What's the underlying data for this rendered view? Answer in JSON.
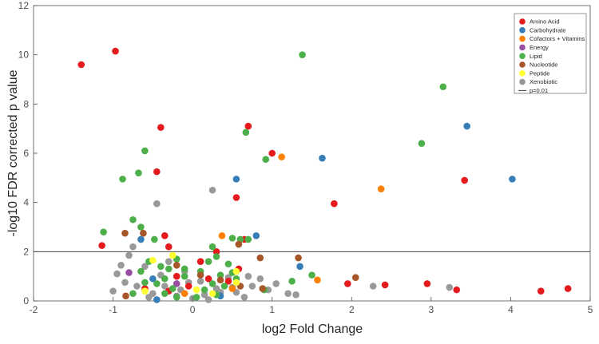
{
  "chart_data": {
    "type": "scatter",
    "xlabel": "log2 Fold Change",
    "ylabel": "-log10 FDR corrected p value",
    "xlim": [
      -2,
      5
    ],
    "ylim": [
      0,
      12
    ],
    "xticks": [
      "-2",
      "-1",
      "0",
      "1",
      "2",
      "3",
      "4",
      "5"
    ],
    "yticks": [
      "0",
      "2",
      "4",
      "6",
      "8",
      "10",
      "12"
    ],
    "grid": false,
    "legend_position": "top-right",
    "threshold": {
      "label": "p=0.01",
      "y": 2,
      "color": "#404040"
    },
    "series": [
      {
        "name": "Amino Acid",
        "color": "#e41a1c",
        "points": [
          [
            -1.4,
            9.6
          ],
          [
            -0.97,
            10.15
          ],
          [
            -0.4,
            7.05
          ],
          [
            0.7,
            7.1
          ],
          [
            -0.45,
            5.25
          ],
          [
            0.55,
            4.2
          ],
          [
            1.0,
            6.0
          ],
          [
            1.78,
            3.95
          ],
          [
            3.42,
            4.9
          ],
          [
            2.95,
            0.7
          ],
          [
            -1.14,
            2.25
          ],
          [
            -0.35,
            2.65
          ],
          [
            -0.3,
            2.2
          ],
          [
            0.65,
            2.5
          ],
          [
            0.3,
            2.0
          ],
          [
            0.1,
            1.6
          ],
          [
            -0.2,
            1.0
          ],
          [
            0.58,
            1.3
          ],
          [
            -0.6,
            0.5
          ],
          [
            -0.3,
            0.4
          ],
          [
            0.45,
            0.8
          ],
          [
            1.95,
            0.7
          ],
          [
            2.42,
            0.65
          ],
          [
            3.32,
            0.45
          ],
          [
            4.38,
            0.4
          ],
          [
            4.72,
            0.5
          ],
          [
            0.2,
            0.9
          ],
          [
            -0.05,
            0.6
          ]
        ]
      },
      {
        "name": "Carbohydrate",
        "color": "#377eb8",
        "points": [
          [
            0.55,
            4.95
          ],
          [
            1.63,
            5.8
          ],
          [
            3.45,
            7.1
          ],
          [
            4.02,
            4.95
          ],
          [
            0.8,
            2.65
          ],
          [
            -0.65,
            2.5
          ],
          [
            1.35,
            1.4
          ],
          [
            -0.5,
            0.9
          ],
          [
            -0.45,
            0.05
          ],
          [
            0.35,
            0.2
          ]
        ]
      },
      {
        "name": "Cofactors + Vitamins",
        "color": "#ff7f00",
        "points": [
          [
            1.12,
            5.85
          ],
          [
            2.37,
            4.55
          ],
          [
            0.37,
            2.65
          ],
          [
            1.57,
            0.85
          ],
          [
            -0.1,
            0.3
          ],
          [
            0.5,
            0.5
          ]
        ]
      },
      {
        "name": "Energy",
        "color": "#984ea3",
        "points": [
          [
            -0.8,
            1.15
          ],
          [
            -0.2,
            0.7
          ]
        ]
      },
      {
        "name": "Lipid",
        "color": "#4daf4a",
        "points": [
          [
            1.38,
            10.0
          ],
          [
            3.15,
            8.7
          ],
          [
            2.88,
            6.4
          ],
          [
            -0.6,
            6.1
          ],
          [
            0.67,
            6.85
          ],
          [
            0.92,
            5.75
          ],
          [
            -0.88,
            4.95
          ],
          [
            -0.68,
            5.2
          ],
          [
            -0.75,
            3.3
          ],
          [
            -1.12,
            2.8
          ],
          [
            -0.65,
            3.0
          ],
          [
            -0.48,
            2.5
          ],
          [
            0.5,
            2.55
          ],
          [
            0.6,
            2.5
          ],
          [
            0.7,
            2.5
          ],
          [
            0.25,
            2.2
          ],
          [
            0.3,
            1.8
          ],
          [
            -0.2,
            1.7
          ],
          [
            -0.55,
            1.6
          ],
          [
            -0.4,
            1.4
          ],
          [
            0.45,
            1.5
          ],
          [
            0.2,
            1.6
          ],
          [
            -0.3,
            1.3
          ],
          [
            0.1,
            1.2
          ],
          [
            -0.1,
            1.0
          ],
          [
            0.35,
            1.05
          ],
          [
            0.55,
            0.9
          ],
          [
            -0.6,
            0.75
          ],
          [
            -0.75,
            0.3
          ],
          [
            -0.35,
            0.3
          ],
          [
            0.3,
            0.25
          ],
          [
            1.5,
            1.05
          ],
          [
            1.25,
            0.8
          ],
          [
            0.9,
            0.45
          ],
          [
            -0.2,
            0.15
          ],
          [
            0.05,
            0.15
          ],
          [
            -0.45,
            0.7
          ],
          [
            -0.25,
            0.5
          ],
          [
            0.15,
            0.45
          ],
          [
            0.4,
            0.6
          ],
          [
            -0.65,
            1.2
          ],
          [
            -0.1,
            1.3
          ],
          [
            0.5,
            1.15
          ],
          [
            -0.35,
            0.9
          ],
          [
            0.25,
            0.7
          ]
        ]
      },
      {
        "name": "Nucleotide",
        "color": "#a65628",
        "points": [
          [
            -0.85,
            2.75
          ],
          [
            -0.62,
            2.75
          ],
          [
            0.58,
            2.3
          ],
          [
            0.85,
            1.75
          ],
          [
            1.33,
            1.75
          ],
          [
            -0.84,
            0.2
          ],
          [
            0.88,
            0.5
          ],
          [
            2.05,
            0.95
          ],
          [
            -0.2,
            1.45
          ],
          [
            0.1,
            1.05
          ],
          [
            0.35,
            0.85
          ],
          [
            0.6,
            0.6
          ]
        ]
      },
      {
        "name": "Peptide",
        "color": "#ffff33",
        "points": [
          [
            -0.25,
            1.85
          ],
          [
            -0.5,
            1.65
          ],
          [
            0.55,
            1.2
          ],
          [
            0.05,
            0.45
          ],
          [
            -0.6,
            0.4
          ],
          [
            0.55,
            0.75
          ],
          [
            0.25,
            0.3
          ]
        ]
      },
      {
        "name": "Xenobiotic",
        "color": "#999999",
        "points": [
          [
            -0.45,
            3.95
          ],
          [
            0.25,
            4.5
          ],
          [
            -0.75,
            2.2
          ],
          [
            -0.8,
            1.85
          ],
          [
            -0.9,
            1.45
          ],
          [
            -0.95,
            1.1
          ],
          [
            -1.0,
            0.4
          ],
          [
            -0.85,
            0.75
          ],
          [
            -0.6,
            1.4
          ],
          [
            -0.3,
            1.6
          ],
          [
            -0.1,
            1.2
          ],
          [
            0.1,
            0.8
          ],
          [
            0.3,
            0.5
          ],
          [
            0.55,
            0.35
          ],
          [
            0.75,
            0.6
          ],
          [
            0.95,
            0.45
          ],
          [
            1.05,
            0.7
          ],
          [
            1.2,
            0.3
          ],
          [
            1.3,
            0.25
          ],
          [
            2.27,
            0.6
          ],
          [
            3.23,
            0.55
          ],
          [
            -0.5,
            0.3
          ],
          [
            -0.2,
            0.2
          ],
          [
            0.0,
            0.1
          ],
          [
            0.2,
            0.05
          ],
          [
            -0.35,
            0.6
          ],
          [
            0.45,
            0.95
          ],
          [
            0.85,
            0.9
          ],
          [
            -0.7,
            0.6
          ],
          [
            0.65,
            0.15
          ],
          [
            -0.15,
            0.45
          ],
          [
            0.35,
            0.35
          ],
          [
            -0.55,
            0.15
          ],
          [
            0.15,
            0.25
          ],
          [
            -0.05,
            0.75
          ],
          [
            0.5,
            0.55
          ],
          [
            -0.4,
            1.05
          ],
          [
            0.7,
            1.0
          ]
        ]
      }
    ]
  }
}
